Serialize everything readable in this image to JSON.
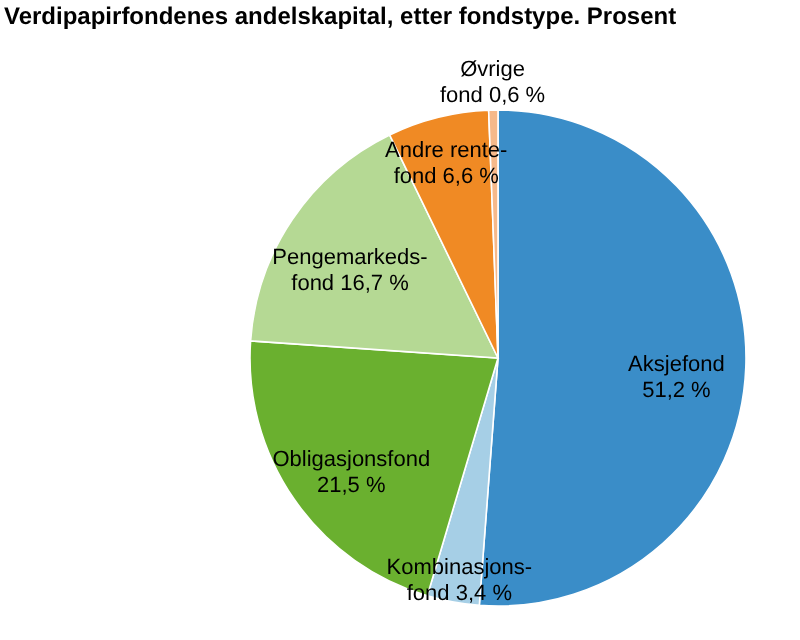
{
  "chart_data": {
    "type": "pie",
    "title": "Verdipapirfondenes andelskapital, etter fondstype. Prosent",
    "categories": [
      "Aksjefond",
      "Kombinasjons-fond",
      "Obligasjonsfond",
      "Pengemarkeds-fond",
      "Andre rente-fond",
      "Øvrige fond"
    ],
    "values": [
      51.2,
      3.4,
      21.5,
      16.7,
      6.6,
      0.6
    ],
    "value_labels": [
      "51,2 %",
      "3,4 %",
      "21,5 %",
      "16,7 %",
      "6,6 %",
      "0,6 %"
    ],
    "colors": [
      "#3a8dc8",
      "#a6cfe6",
      "#6ab02f",
      "#b5d994",
      "#f08a24",
      "#f6b98a"
    ],
    "legend": false
  }
}
